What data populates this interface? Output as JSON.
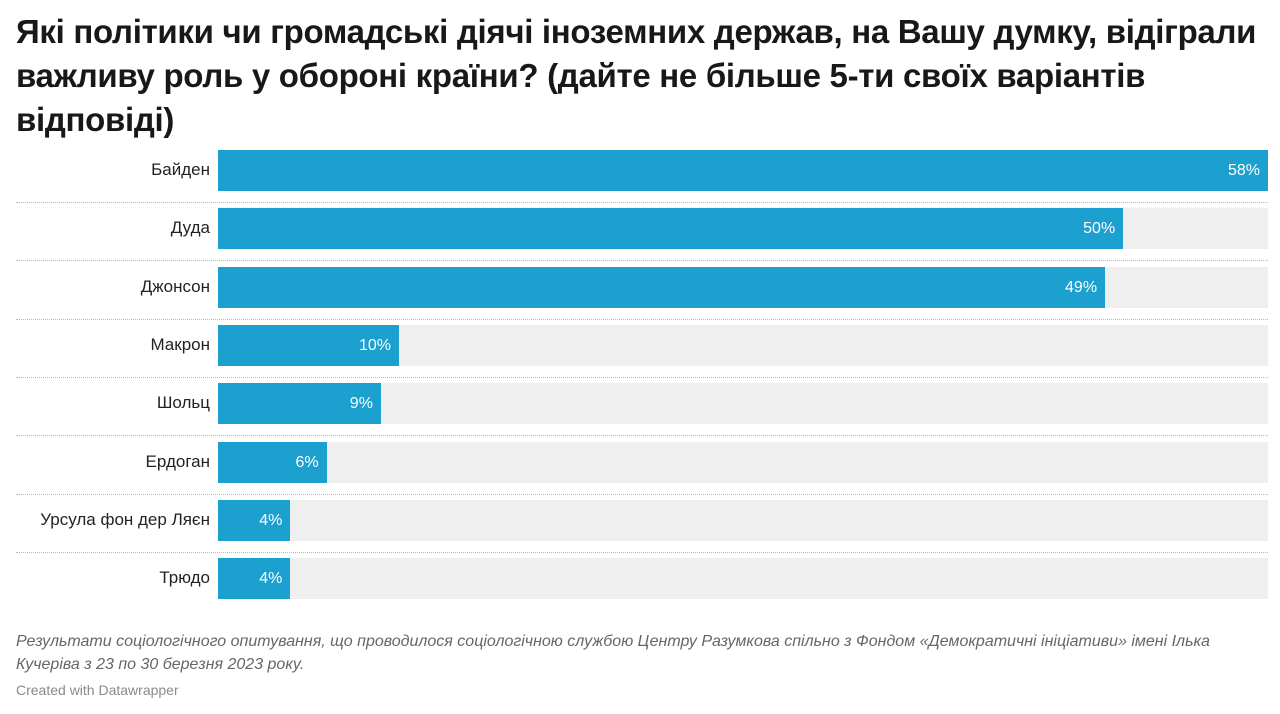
{
  "title": "Які політики чи громадські діячі іноземних держав, на Вашу думку, відіграли важливу роль у обороні країни? (дайте не більше 5-ти своїх варіантів відповіді)",
  "chart_data": {
    "type": "bar",
    "orientation": "horizontal",
    "categories": [
      "Байден",
      "Дуда",
      "Джонсон",
      "Макрон",
      "Шольц",
      "Ердоган",
      "Урсула фон дер Ляєн",
      "Трюдо"
    ],
    "values": [
      58,
      50,
      49,
      10,
      9,
      6,
      4,
      4
    ],
    "value_labels": [
      "58%",
      "50%",
      "49%",
      "10%",
      "9%",
      "6%",
      "4%",
      "4%"
    ],
    "xlim": [
      0,
      58
    ],
    "colors": {
      "bar": "#1ba0cf",
      "track": "#efefef"
    }
  },
  "footnote": "Результати соціологічного опитування, що проводилося соціологічною службою Центру Разумкова спільно з Фондом «Демократичні ініціативи» імені Ілька Кучеріва з 23 по 30 березня 2023 року.",
  "credit": "Created with Datawrapper"
}
